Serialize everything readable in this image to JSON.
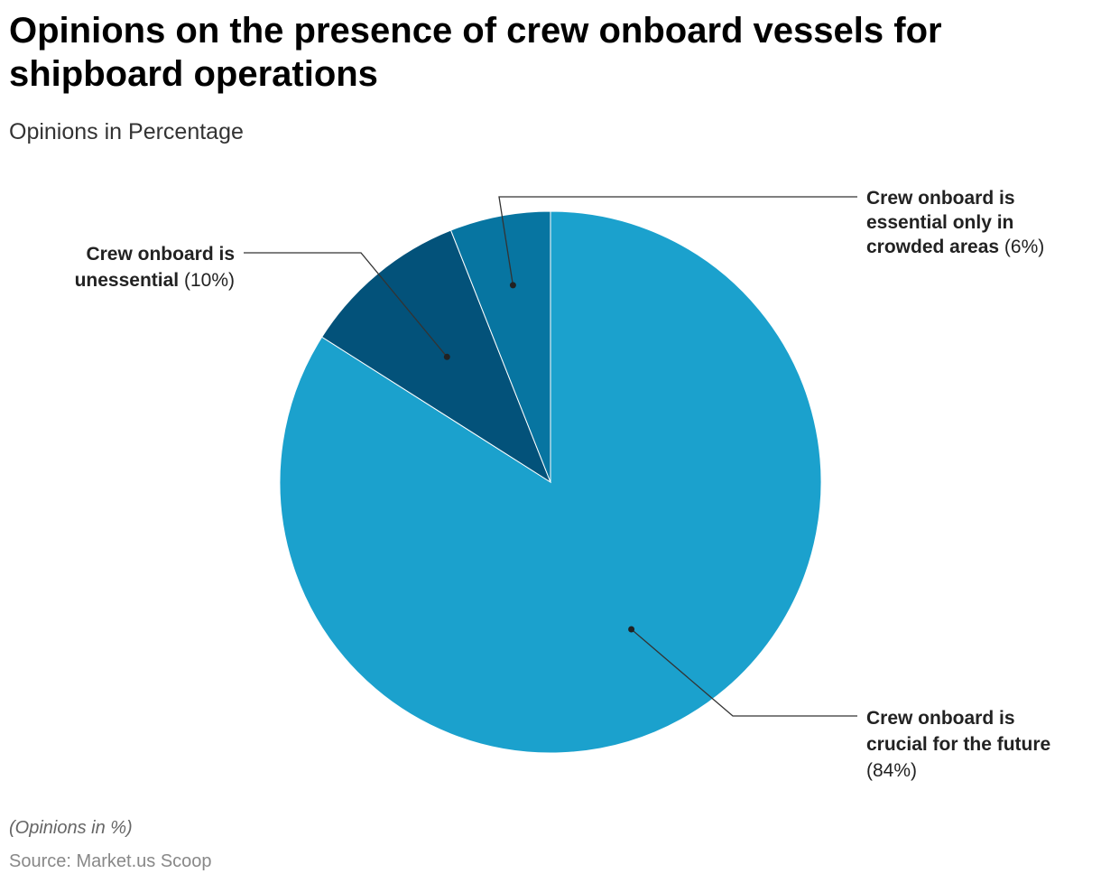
{
  "title": "Opinions on the presence of crew onboard vessels for shipboard operations",
  "subtitle": "Opinions in Percentage",
  "footnote": "(Opinions in %)",
  "source": "Source: Market.us Scoop",
  "chart_data": {
    "type": "pie",
    "title": "Opinions on the presence of crew onboard vessels for shipboard operations",
    "subtitle": "Opinions in Percentage",
    "categories": [
      "Crew onboard is crucial for the future",
      "Crew onboard is unessential",
      "Crew onboard is essential only in crowded areas"
    ],
    "values": [
      84,
      10,
      6
    ],
    "unit": "%",
    "slices": [
      {
        "label": "Crew onboard is crucial for the future",
        "value": 84,
        "value_label": "(84%)",
        "color": "#1BA1CD",
        "label_lines": [
          {
            "bold": "Crew onboard is",
            "normal": ""
          },
          {
            "bold": "crucial for the future",
            "normal": ""
          },
          {
            "bold": "",
            "normal": "(84%)"
          }
        ]
      },
      {
        "label": "Crew onboard is unessential",
        "value": 10,
        "value_label": "(10%)",
        "color": "#03527A",
        "label_lines": [
          {
            "bold": "Crew onboard is",
            "normal": ""
          },
          {
            "bold": "unessential",
            "normal": " (10%)"
          }
        ]
      },
      {
        "label": "Crew onboard is essential only in crowded areas",
        "value": 6,
        "value_label": "(6%)",
        "color": "#0775A1",
        "label_lines": [
          {
            "bold": "Crew onboard is",
            "normal": ""
          },
          {
            "bold": "essential only in",
            "normal": ""
          },
          {
            "bold": "crowded areas",
            "normal": " (6%)"
          }
        ]
      }
    ],
    "slice_order": "clockwise from top",
    "legend": "none (direct labels with leader lines)"
  }
}
